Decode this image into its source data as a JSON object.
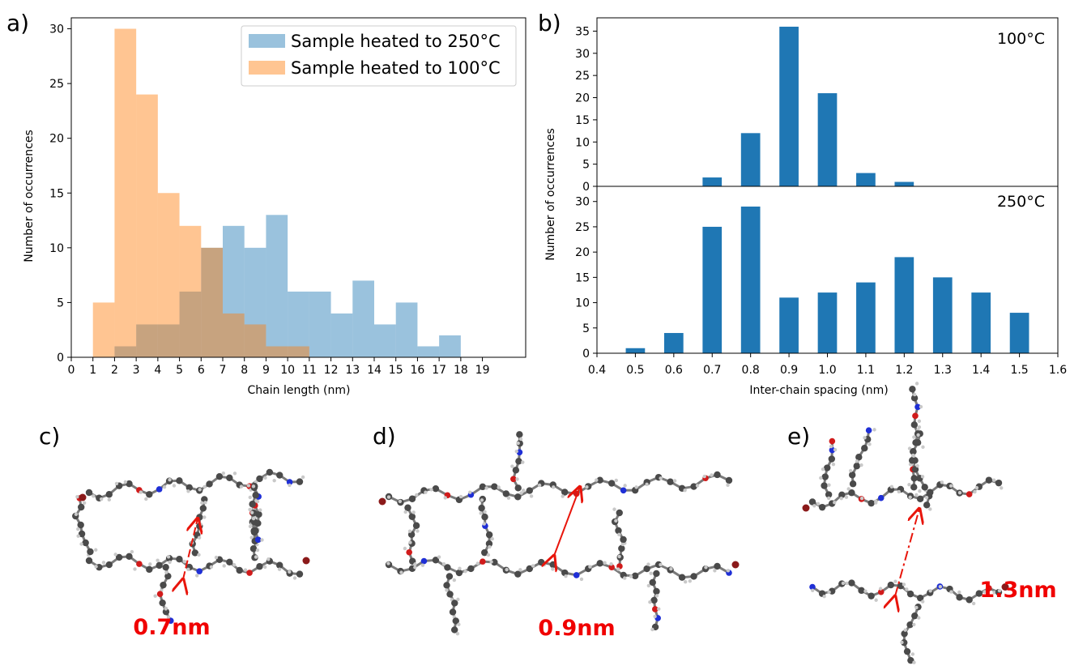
{
  "panel_labels": {
    "a": "a)",
    "b": "b)",
    "c": "c)",
    "d": "d)",
    "e": "e)"
  },
  "chart_data": [
    {
      "type": "bar",
      "xlabel": "Chain length (nm)",
      "ylabel": "Number of occurrences",
      "xlim": [
        0,
        21
      ],
      "ylim": [
        0,
        31
      ],
      "xticks": [
        0,
        1,
        2,
        3,
        4,
        5,
        6,
        7,
        8,
        9,
        10,
        11,
        12,
        13,
        14,
        15,
        16,
        17,
        18,
        19
      ],
      "yticks": [
        0,
        5,
        10,
        15,
        20,
        25,
        30
      ],
      "legend_position": "top-right",
      "series": [
        {
          "name": "Sample heated to 250°C",
          "color": "#1f77b4",
          "alpha": 0.45,
          "bin_edges": [
            2,
            3,
            4,
            5,
            6,
            7,
            8,
            9,
            10,
            11,
            12,
            13,
            14,
            15,
            16,
            17,
            18,
            19
          ],
          "values": [
            1,
            3,
            3,
            6,
            10,
            12,
            10,
            13,
            6,
            6,
            4,
            7,
            3,
            5,
            1,
            2,
            0,
            1
          ]
        },
        {
          "name": "Sample heated to 100°C",
          "color": "#ff7f0e",
          "alpha": 0.45,
          "bin_edges": [
            1,
            2,
            3,
            4,
            5,
            6,
            7,
            8,
            9,
            10,
            11
          ],
          "values": [
            5,
            30,
            24,
            15,
            12,
            10,
            4,
            3,
            1,
            1
          ]
        }
      ]
    },
    {
      "type": "bar",
      "annotation": "100°C",
      "ylabel": "Number of occurrences",
      "color": "#1f77b4",
      "bar_width": 0.05,
      "xlim": [
        0.4,
        1.6
      ],
      "ylim": [
        0,
        38
      ],
      "yticks": [
        0,
        5,
        10,
        15,
        20,
        25,
        30,
        35
      ],
      "x": [
        0.7,
        0.8,
        0.9,
        1.0,
        1.1,
        1.2
      ],
      "values": [
        2,
        12,
        36,
        21,
        3,
        1
      ]
    },
    {
      "type": "bar",
      "annotation": "250°C",
      "xlabel": "Inter-chain spacing (nm)",
      "color": "#1f77b4",
      "bar_width": 0.05,
      "xlim": [
        0.4,
        1.6
      ],
      "ylim": [
        0,
        33
      ],
      "xticks": [
        "0.4",
        "0.5",
        "0.6",
        "0.7",
        "0.8",
        "0.9",
        "1.0",
        "1.1",
        "1.2",
        "1.3",
        "1.4",
        "1.5",
        "1.6"
      ],
      "yticks": [
        0,
        5,
        10,
        15,
        20,
        25,
        30
      ],
      "x": [
        0.5,
        0.6,
        0.7,
        0.8,
        0.9,
        1.0,
        1.1,
        1.2,
        1.3,
        1.4,
        1.5
      ],
      "values": [
        1,
        4,
        25,
        29,
        11,
        12,
        14,
        19,
        15,
        12,
        8
      ]
    }
  ],
  "molecules": {
    "c_spacing": "0.7nm",
    "d_spacing": "0.9nm",
    "e_spacing": "1.3nm"
  }
}
